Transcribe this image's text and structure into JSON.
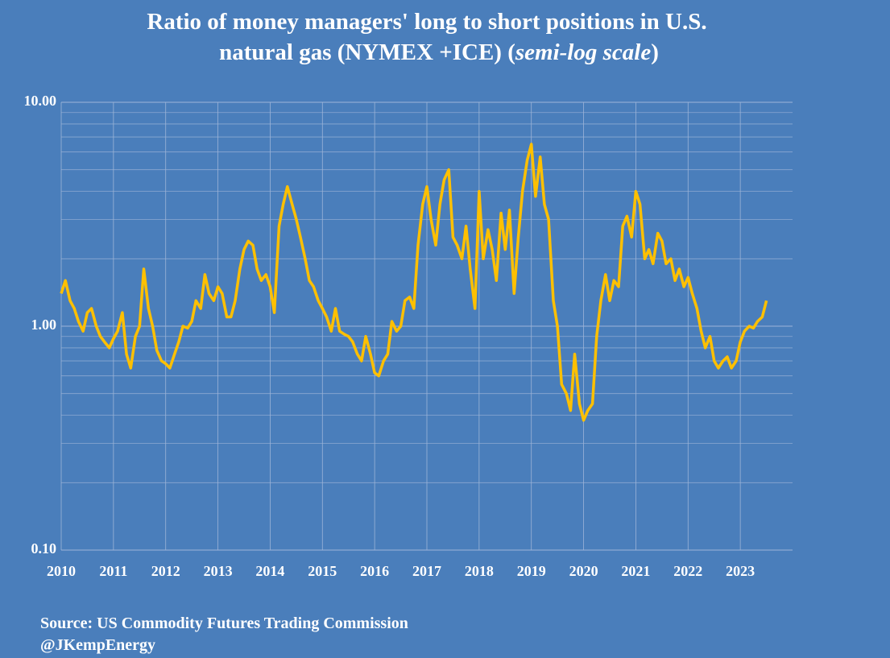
{
  "chart_data": {
    "type": "line",
    "title_lines": [
      "Ratio of money managers' long to short positions in U.S.",
      "natural gas  (NYMEX +ICE) ("
    ],
    "title_italic": "semi-log scale",
    "title_end": ")",
    "source": "Source: US Commodity Futures Trading Commission",
    "credit": "@JKempEnergy",
    "color": "#ffc000",
    "log_scale": true,
    "grid": true,
    "xlim": [
      2010,
      2024
    ],
    "xticks": [
      2010,
      2011,
      2012,
      2013,
      2014,
      2015,
      2016,
      2017,
      2018,
      2019,
      2020,
      2021,
      2022,
      2023
    ],
    "ylim": [
      0.1,
      10
    ],
    "yticks": [
      {
        "value": 0.1,
        "label": "0.10"
      },
      {
        "value": 1,
        "label": "1.00"
      },
      {
        "value": 10,
        "label": "10.00"
      }
    ],
    "yminorticks": [
      0.2,
      0.3,
      0.4,
      0.5,
      0.6,
      0.7,
      0.8,
      0.9,
      2,
      3,
      4,
      5,
      6,
      7,
      8,
      9
    ],
    "x": [
      2010,
      2010.08,
      2010.17,
      2010.25,
      2010.33,
      2010.42,
      2010.5,
      2010.58,
      2010.67,
      2010.75,
      2010.83,
      2010.92,
      2011,
      2011.08,
      2011.17,
      2011.25,
      2011.33,
      2011.42,
      2011.5,
      2011.58,
      2011.67,
      2011.75,
      2011.83,
      2011.92,
      2012,
      2012.08,
      2012.17,
      2012.25,
      2012.33,
      2012.42,
      2012.5,
      2012.58,
      2012.67,
      2012.75,
      2012.83,
      2012.92,
      2013,
      2013.08,
      2013.17,
      2013.25,
      2013.33,
      2013.42,
      2013.5,
      2013.58,
      2013.67,
      2013.75,
      2013.83,
      2013.92,
      2014,
      2014.08,
      2014.17,
      2014.25,
      2014.33,
      2014.42,
      2014.5,
      2014.58,
      2014.67,
      2014.75,
      2014.83,
      2014.92,
      2015,
      2015.08,
      2015.17,
      2015.25,
      2015.33,
      2015.42,
      2015.5,
      2015.58,
      2015.67,
      2015.75,
      2015.83,
      2015.92,
      2016,
      2016.08,
      2016.17,
      2016.25,
      2016.33,
      2016.42,
      2016.5,
      2016.58,
      2016.67,
      2016.75,
      2016.83,
      2016.92,
      2017,
      2017.08,
      2017.17,
      2017.25,
      2017.33,
      2017.42,
      2017.5,
      2017.58,
      2017.67,
      2017.75,
      2017.83,
      2017.92,
      2018,
      2018.08,
      2018.17,
      2018.25,
      2018.33,
      2018.42,
      2018.5,
      2018.58,
      2018.67,
      2018.75,
      2018.83,
      2018.92,
      2019,
      2019.08,
      2019.17,
      2019.25,
      2019.33,
      2019.42,
      2019.5,
      2019.58,
      2019.67,
      2019.75,
      2019.83,
      2019.92,
      2020,
      2020.08,
      2020.17,
      2020.25,
      2020.33,
      2020.42,
      2020.5,
      2020.58,
      2020.67,
      2020.75,
      2020.83,
      2020.92,
      2021,
      2021.08,
      2021.17,
      2021.25,
      2021.33,
      2021.42,
      2021.5,
      2021.58,
      2021.67,
      2021.75,
      2021.83,
      2021.92,
      2022,
      2022.08,
      2022.17,
      2022.25,
      2022.33,
      2022.42,
      2022.5,
      2022.58,
      2022.67,
      2022.75,
      2022.83,
      2022.92,
      2023,
      2023.08,
      2023.17,
      2023.25,
      2023.33,
      2023.42,
      2023.5
    ],
    "values": [
      1.4,
      1.6,
      1.3,
      1.2,
      1.05,
      0.95,
      1.15,
      1.2,
      1.0,
      0.9,
      0.85,
      0.8,
      0.88,
      0.95,
      1.15,
      0.75,
      0.65,
      0.9,
      1.0,
      1.8,
      1.2,
      1.0,
      0.78,
      0.7,
      0.68,
      0.65,
      0.75,
      0.85,
      1.0,
      0.98,
      1.05,
      1.3,
      1.2,
      1.7,
      1.4,
      1.3,
      1.5,
      1.4,
      1.1,
      1.1,
      1.3,
      1.8,
      2.2,
      2.4,
      2.3,
      1.8,
      1.6,
      1.7,
      1.5,
      1.15,
      2.8,
      3.5,
      4.2,
      3.5,
      3.0,
      2.5,
      2.0,
      1.6,
      1.5,
      1.3,
      1.2,
      1.1,
      0.95,
      1.2,
      0.95,
      0.92,
      0.9,
      0.85,
      0.75,
      0.7,
      0.9,
      0.75,
      0.62,
      0.6,
      0.7,
      0.75,
      1.05,
      0.95,
      1.0,
      1.3,
      1.35,
      1.2,
      2.3,
      3.5,
      4.2,
      3.0,
      2.3,
      3.5,
      4.5,
      5.0,
      2.5,
      2.3,
      2.0,
      2.8,
      1.8,
      1.2,
      4.0,
      2.0,
      2.7,
      2.2,
      1.6,
      3.2,
      2.2,
      3.3,
      1.4,
      2.5,
      4.0,
      5.5,
      6.5,
      3.8,
      5.7,
      3.5,
      3.0,
      1.3,
      1.0,
      0.55,
      0.5,
      0.42,
      0.75,
      0.45,
      0.38,
      0.42,
      0.45,
      0.9,
      1.3,
      1.7,
      1.3,
      1.6,
      1.5,
      2.8,
      3.1,
      2.5,
      4.0,
      3.5,
      2.0,
      2.2,
      1.9,
      2.6,
      2.4,
      1.9,
      2.0,
      1.6,
      1.8,
      1.5,
      1.65,
      1.4,
      1.2,
      0.95,
      0.8,
      0.9,
      0.7,
      0.65,
      0.7,
      0.73,
      0.65,
      0.7,
      0.85,
      0.95,
      1.0,
      0.98,
      1.05,
      1.1,
      1.3
    ]
  }
}
